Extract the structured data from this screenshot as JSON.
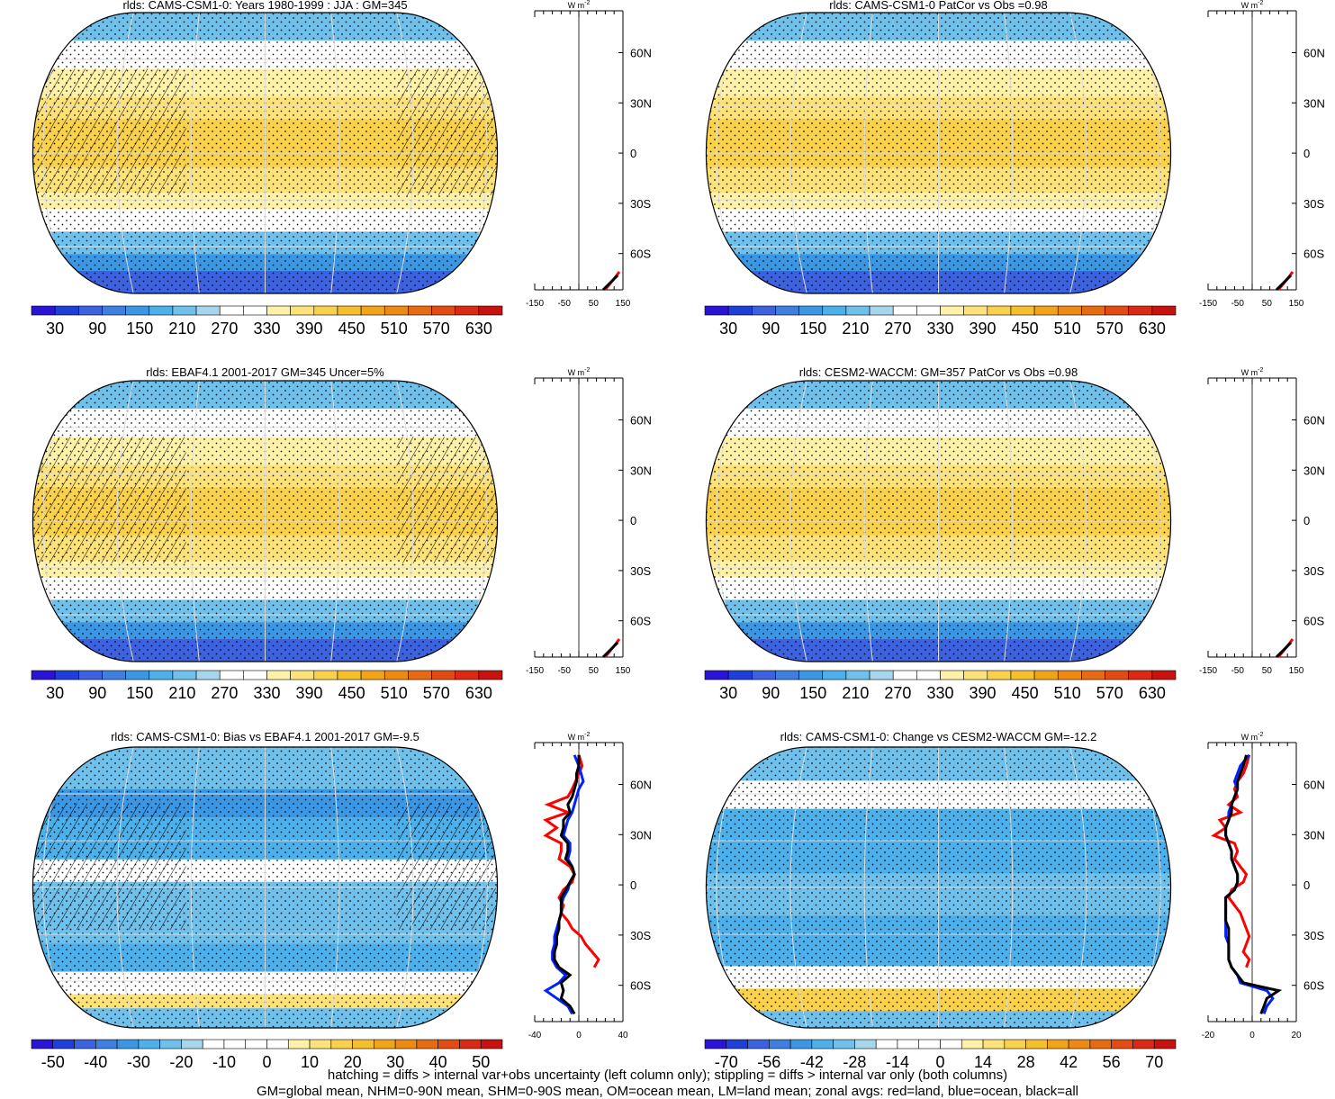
{
  "footer": {
    "line1": "hatching = diffs > internal var+obs uncertainty (left column only); stippling = diffs > internal var only (both columns)",
    "line2": "GM=global mean, NHM=0-90N mean, SHM=0-90S mean, OM=ocean mean, LM=land mean; zonal avgs: red=land, blue=ocean, black=all"
  },
  "zonal_unit": "W m",
  "zonal_unit_exp": "-2",
  "colors": {
    "abs_scale": [
      "#2a14d6",
      "#1f3fd9",
      "#3c62df",
      "#3f7fe0",
      "#3b97e4",
      "#4db0ea",
      "#6fc0ea",
      "#a6d6ee",
      "#ffffff",
      "#ffffff",
      "#fff2a8",
      "#fde27a",
      "#f9d14c",
      "#f5bf2d",
      "#f1a419",
      "#ec8a14",
      "#e76b13",
      "#e24c14",
      "#da2a14",
      "#c8120f"
    ],
    "land_line": "#ff0000",
    "ocean_line": "#0022ff",
    "all_line": "#000000"
  },
  "chart_data": [
    {
      "type": "heatmap",
      "title": "rlds: CAMS-CSM1-0: Years 1980-1999 : JJA : GM=345",
      "colorbar_labels": [
        "30",
        "90",
        "150",
        "210",
        "270",
        "330",
        "390",
        "450",
        "510",
        "570",
        "630"
      ],
      "zonal_ticks": [
        "-150",
        "-50",
        "50",
        "150"
      ],
      "lat_labels": [
        "60N",
        "30N",
        "0",
        "30S",
        "60S"
      ],
      "hatching": true,
      "stippling": true,
      "zonal_mean": {
        "lat": [
          90,
          70,
          60,
          50,
          40,
          30,
          20,
          10,
          0,
          -10,
          -20,
          -30,
          -40,
          -50,
          -60,
          -70,
          -80,
          -90
        ],
        "x_range": [
          -150,
          150
        ],
        "all": null
      }
    },
    {
      "type": "heatmap",
      "title": "rlds: CAMS-CSM1-0 PatCor vs Obs =0.98",
      "colorbar_labels": [
        "30",
        "90",
        "150",
        "210",
        "270",
        "330",
        "390",
        "450",
        "510",
        "570",
        "630"
      ],
      "zonal_ticks": [
        "-150",
        "-50",
        "50",
        "150"
      ],
      "lat_labels": [
        "60N",
        "30N",
        "0",
        "30S",
        "60S"
      ],
      "hatching": false,
      "stippling": true
    },
    {
      "type": "heatmap",
      "title": "rlds: EBAF4.1 2001-2017 GM=345 Uncer=5%",
      "colorbar_labels": [
        "30",
        "90",
        "150",
        "210",
        "270",
        "330",
        "390",
        "450",
        "510",
        "570",
        "630"
      ],
      "zonal_ticks": [
        "-150",
        "-50",
        "50",
        "150"
      ],
      "lat_labels": [
        "60N",
        "30N",
        "0",
        "30S",
        "60S"
      ],
      "hatching": true,
      "stippling": true
    },
    {
      "type": "heatmap",
      "title": "rlds: CESM2-WACCM: GM=357 PatCor vs Obs =0.98",
      "colorbar_labels": [
        "30",
        "90",
        "150",
        "210",
        "270",
        "330",
        "390",
        "450",
        "510",
        "570",
        "630"
      ],
      "zonal_ticks": [
        "-150",
        "-50",
        "50",
        "150"
      ],
      "lat_labels": [
        "60N",
        "30N",
        "0",
        "30S",
        "60S"
      ],
      "hatching": false,
      "stippling": true
    },
    {
      "type": "heatmap",
      "title": "rlds: CAMS-CSM1-0: Bias vs EBAF4.1 2001-2017 GM=-9.5",
      "colorbar_labels": [
        "-50",
        "-40",
        "-30",
        "-20",
        "-10",
        "0",
        "10",
        "20",
        "30",
        "40",
        "50"
      ],
      "zonal_ticks": [
        "-40",
        "0",
        "40"
      ],
      "lat_labels": [
        "60N",
        "30N",
        "0",
        "30S",
        "60S"
      ],
      "hatching": true,
      "stippling": true,
      "zonal_mean": {
        "lat": [
          82,
          75,
          70,
          65,
          60,
          55,
          50,
          45,
          40,
          35,
          30,
          25,
          20,
          15,
          10,
          5,
          0,
          -5,
          -10,
          -15,
          -20,
          -25,
          -30,
          -35,
          -40,
          -45,
          -50,
          -55,
          -60,
          -65,
          -70,
          -75,
          -80,
          -85
        ],
        "x_range": [
          -40,
          40
        ],
        "land": [
          0,
          3,
          0,
          -3,
          -6,
          -10,
          -28,
          -10,
          -30,
          -20,
          -30,
          -16,
          -16,
          -18,
          -8,
          -4,
          -6,
          -14,
          -18,
          -14,
          -16,
          -10,
          -6,
          2,
          6,
          12,
          18,
          14,
          null,
          null,
          null,
          null,
          null,
          null
        ],
        "ocean": [
          -4,
          0,
          2,
          4,
          0,
          -2,
          -4,
          -6,
          -10,
          -12,
          -14,
          -8,
          -8,
          -10,
          -6,
          -4,
          -8,
          -10,
          -14,
          -16,
          -16,
          -18,
          -20,
          -22,
          -22,
          -24,
          -24,
          -20,
          -12,
          -18,
          -30,
          -20,
          -10,
          -6
        ],
        "all": [
          0,
          0,
          -2,
          -2,
          -4,
          -6,
          -10,
          -8,
          -14,
          -14,
          -16,
          -10,
          -10,
          -12,
          -6,
          -4,
          -8,
          -12,
          -16,
          -16,
          -16,
          -18,
          -18,
          -20,
          -20,
          -22,
          -22,
          -18,
          -8,
          -16,
          -14,
          -16,
          -8,
          -4
        ]
      }
    },
    {
      "type": "heatmap",
      "title": "rlds: CAMS-CSM1-0: Change vs CESM2-WACCM GM=-12.2",
      "colorbar_labels": [
        "-70",
        "-56",
        "-42",
        "-28",
        "-14",
        "0",
        "14",
        "28",
        "42",
        "56",
        "70"
      ],
      "zonal_ticks": [
        "-20",
        "0",
        "20"
      ],
      "lat_labels": [
        "60N",
        "30N",
        "0",
        "30S",
        "60S"
      ],
      "hatching": false,
      "stippling": true,
      "zonal_mean": {
        "lat": [
          82,
          75,
          70,
          65,
          60,
          55,
          50,
          45,
          40,
          35,
          30,
          25,
          20,
          15,
          10,
          5,
          0,
          -5,
          -10,
          -15,
          -20,
          -25,
          -30,
          -35,
          -40,
          -45,
          -50,
          -55,
          -60,
          -65,
          -70,
          -75,
          -80,
          -85
        ],
        "x_range": [
          -30,
          30
        ],
        "land": [
          -2,
          -4,
          -6,
          -10,
          -12,
          -10,
          -16,
          -8,
          -22,
          -18,
          -26,
          -12,
          -10,
          -12,
          -8,
          -4,
          -6,
          -14,
          -16,
          -12,
          -8,
          -6,
          -4,
          -2,
          -4,
          -6,
          -2,
          -4,
          null,
          null,
          null,
          null,
          null,
          null
        ],
        "ocean": [
          -2,
          -8,
          -10,
          -12,
          -10,
          -12,
          -14,
          -16,
          -16,
          -18,
          -18,
          -16,
          -14,
          -14,
          -12,
          -10,
          -10,
          -12,
          -18,
          -18,
          -18,
          -18,
          -18,
          -18,
          -16,
          -16,
          -16,
          -14,
          -10,
          -8,
          10,
          14,
          10,
          8
        ],
        "all": [
          -4,
          -6,
          -8,
          -10,
          -10,
          -12,
          -14,
          -14,
          -16,
          -18,
          -18,
          -16,
          -14,
          -14,
          -12,
          -10,
          -10,
          -12,
          -18,
          -18,
          -18,
          -18,
          -16,
          -16,
          -16,
          -16,
          -16,
          -14,
          -10,
          -6,
          18,
          10,
          8,
          6
        ]
      }
    }
  ]
}
